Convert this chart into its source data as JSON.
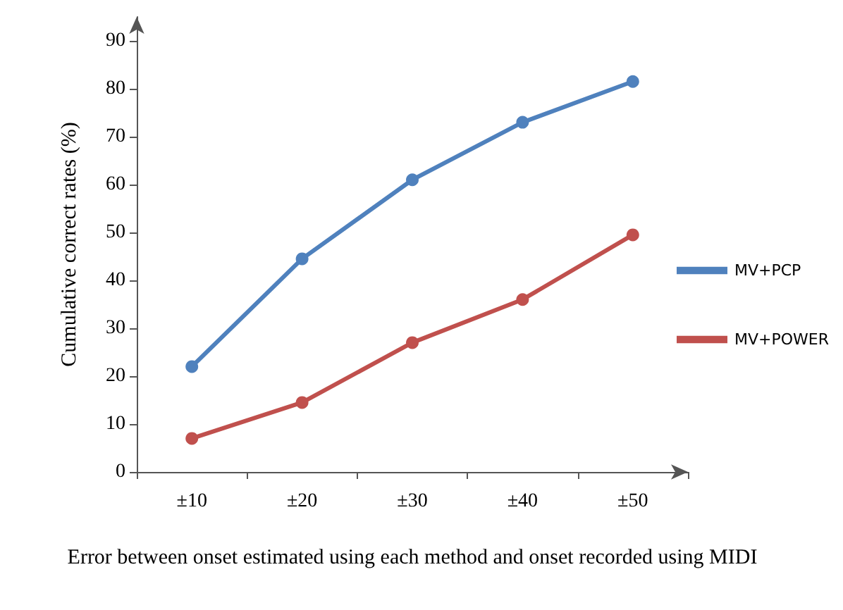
{
  "chart_data": {
    "type": "line",
    "xlabel": "Error between onset estimated using each method and onset recorded using MIDI",
    "ylabel": "Cumulative correct rates (%)",
    "categories": [
      "±10",
      "±20",
      "±30",
      "±40",
      "±50"
    ],
    "series": [
      {
        "name": "MV+PCP",
        "color": "#4f81bd",
        "values": [
          22,
          44.5,
          61,
          73,
          81.5
        ]
      },
      {
        "name": "MV+POWER",
        "color": "#c0504d",
        "values": [
          7,
          14.5,
          27,
          36,
          49.5
        ]
      }
    ],
    "ylim": [
      0,
      95
    ],
    "yticks": [
      0,
      10,
      20,
      30,
      40,
      50,
      60,
      70,
      80,
      90
    ],
    "grid": false,
    "legend": "right",
    "marker": "circle",
    "line_style": "solid"
  }
}
